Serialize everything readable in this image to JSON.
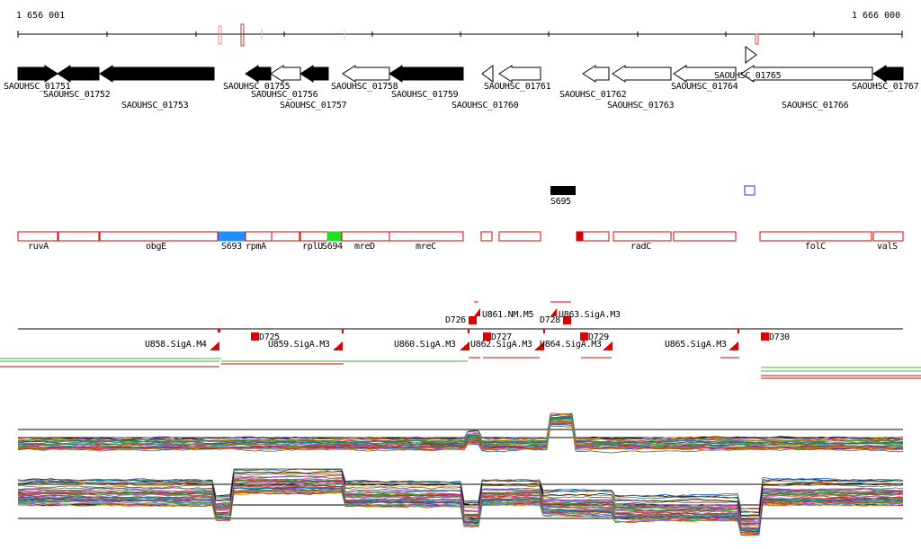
{
  "axis": {
    "start_label": "1 656 001",
    "end_label": "1 666 000"
  },
  "genes": [
    {
      "id": "SAOUHSC_01751"
    },
    {
      "id": "SAOUHSC_01752"
    },
    {
      "id": "SAOUHSC_01753"
    },
    {
      "id": "SAOUHSC_01755"
    },
    {
      "id": "SAOUHSC_01756"
    },
    {
      "id": "SAOUHSC_01757"
    },
    {
      "id": "SAOUHSC_01758"
    },
    {
      "id": "SAOUHSC_01759"
    },
    {
      "id": "SAOUHSC_01760"
    },
    {
      "id": "SAOUHSC_01761"
    },
    {
      "id": "SAOUHSC_01762"
    },
    {
      "id": "SAOUHSC_01763"
    },
    {
      "id": "SAOUHSC_01764"
    },
    {
      "id": "SAOUHSC_01765"
    },
    {
      "id": "SAOUHSC_01766"
    },
    {
      "id": "SAOUHSC_01767"
    }
  ],
  "features": {
    "s695": "S695"
  },
  "gene_names": [
    "ruvA",
    "obgE",
    "S693",
    "rpmA",
    "rplU",
    "S694",
    "mreD",
    "mreC",
    "radC",
    "folC",
    "valS"
  ],
  "regulatory": [
    "U858.SigA.M4",
    "D725",
    "U859.SigA.M3",
    "U860.SigA.M3",
    "D726",
    "U861.NM.M5",
    "D727",
    "U862.SigA.M3",
    "D728",
    "U863.SigA.M3",
    "U864.SigA.M3",
    "D729",
    "U865.SigA.M3",
    "D730"
  ],
  "colors": {
    "red": "#dd0000",
    "black": "#000000",
    "blue": "#1e90ff",
    "green": "#22dd22",
    "trackGreen": "#3cb43c"
  }
}
